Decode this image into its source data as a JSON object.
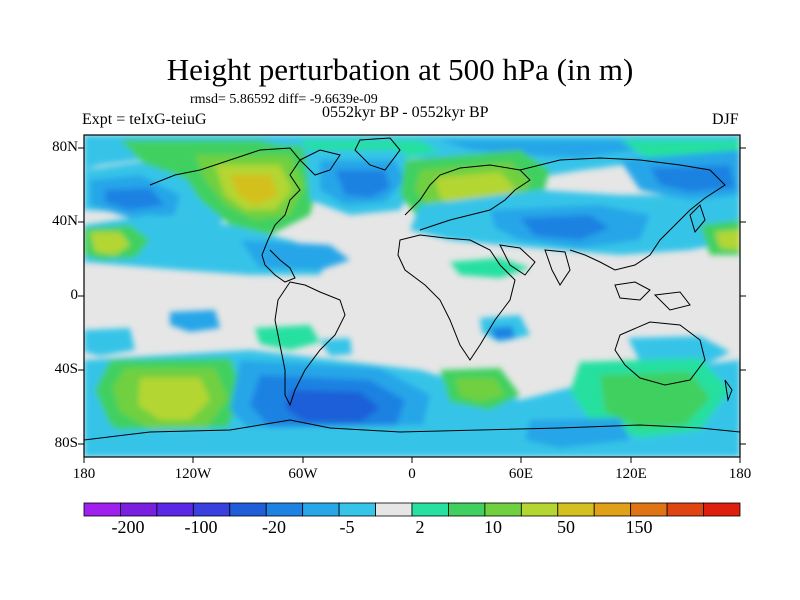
{
  "title": "Height perturbation at 500 hPa (in m)",
  "stats_line": "rmsd= 5.86592 diff= -9.6639e-09",
  "experiment": "Expt = teIxG-teiuG",
  "period": "0552kyr BP - 0552kyr BP",
  "season": "DJF",
  "lat_labels": [
    "80N",
    "40N",
    "0",
    "40S",
    "80S"
  ],
  "lon_labels": [
    "180",
    "120W",
    "60W",
    "0",
    "60E",
    "120E",
    "180"
  ],
  "colorbar": {
    "labels": [
      "-200",
      "-100",
      "-20",
      "-5",
      "2",
      "10",
      "50",
      "150"
    ],
    "colors": [
      "#a020f0",
      "#7a1fe0",
      "#5a28e6",
      "#3a40e0",
      "#1f5ed8",
      "#1e82e2",
      "#28a6e8",
      "#36c4e8",
      "#e6e6e6",
      "#28e0a0",
      "#40d060",
      "#70d040",
      "#b4d632",
      "#d4c01e",
      "#e0a01a",
      "#e07414",
      "#e04410",
      "#e01e0e"
    ]
  },
  "colors": {
    "neutral": "#e6e6e6",
    "frame": "#000000"
  }
}
